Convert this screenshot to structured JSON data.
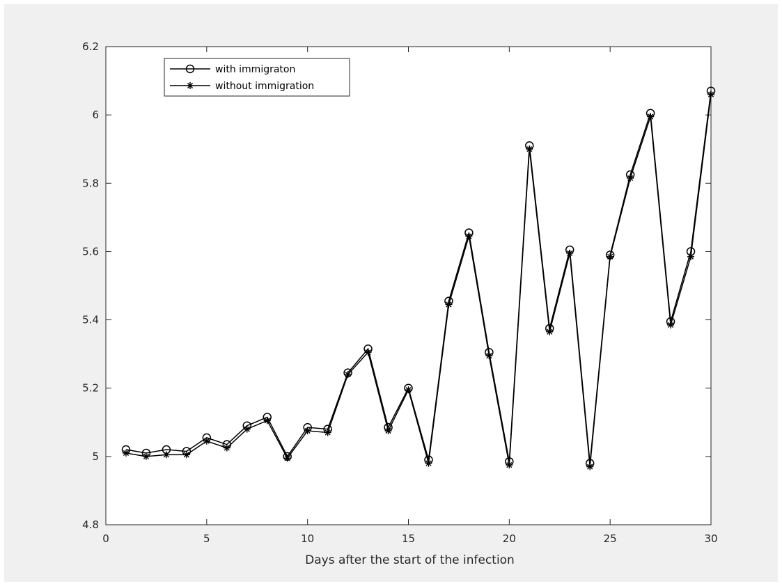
{
  "chart_data": {
    "type": "line",
    "title": "",
    "xlabel": "Days after the start of the infection",
    "ylabel": "",
    "xlim": [
      0,
      30
    ],
    "ylim": [
      4.8,
      6.2
    ],
    "xticks": [
      "0",
      "5",
      "10",
      "15",
      "20",
      "25",
      "30"
    ],
    "yticks": [
      "4.8",
      "5",
      "5.2",
      "5.4",
      "5.6",
      "5.8",
      "6",
      "6.2"
    ],
    "grid": false,
    "legend_position": "top-left",
    "background_color": "#f0f0f0",
    "axes_color": "#ffffff",
    "line_color": "#000000",
    "x": [
      1,
      2,
      3,
      4,
      5,
      6,
      7,
      8,
      9,
      10,
      11,
      12,
      13,
      14,
      15,
      16,
      17,
      18,
      19,
      20,
      21,
      22,
      23,
      24,
      25,
      26,
      27,
      28,
      29,
      30
    ],
    "series": [
      {
        "name": "with immigraton",
        "marker": "circle",
        "values": [
          5.02,
          5.01,
          5.02,
          5.015,
          5.055,
          5.035,
          5.09,
          5.115,
          5.0,
          5.085,
          5.08,
          5.245,
          5.315,
          5.085,
          5.2,
          4.99,
          5.455,
          5.655,
          5.305,
          4.985,
          5.91,
          5.375,
          5.605,
          4.98,
          5.59,
          5.825,
          6.005,
          5.395,
          5.6,
          6.07
        ]
      },
      {
        "name": "without immigration",
        "marker": "asterisk",
        "values": [
          5.01,
          5.0,
          5.005,
          5.005,
          5.045,
          5.025,
          5.08,
          5.105,
          4.995,
          5.075,
          5.07,
          5.24,
          5.305,
          5.075,
          5.195,
          4.98,
          5.445,
          5.645,
          5.295,
          4.975,
          5.9,
          5.365,
          5.595,
          4.97,
          5.585,
          5.815,
          5.995,
          5.385,
          5.585,
          6.06
        ]
      }
    ]
  }
}
